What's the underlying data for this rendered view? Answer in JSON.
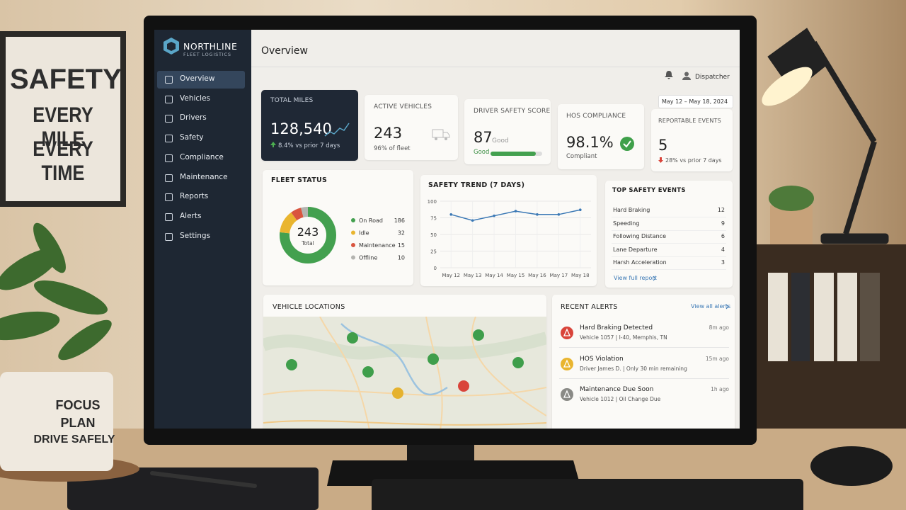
{
  "poster": {
    "lines": [
      "SAFETY",
      "EVERY MILE",
      "EVERY TIME"
    ]
  },
  "mug": {
    "lines": [
      "FOCUS",
      "PLAN",
      "DRIVE SAFELY"
    ]
  },
  "brand": {
    "name": "NORTHLINE",
    "sub": "FLEET LOGISTICS"
  },
  "nav": [
    "Overview",
    "Vehicles",
    "Drivers",
    "Safety",
    "Compliance",
    "Maintenance",
    "Reports",
    "Alerts",
    "Settings"
  ],
  "header": {
    "title": "Overview",
    "user": "Dispatcher",
    "date_range": "May 12 – May 18, 2024"
  },
  "kpis": [
    {
      "label": "TOTAL MILES",
      "value": "128,540",
      "note": "8.4% vs prior 7 days"
    },
    {
      "label": "ACTIVE VEHICLES",
      "value": "243",
      "note": "96% of fleet"
    },
    {
      "label": "DRIVER SAFETY SCORE",
      "value": 87,
      "status": "Good"
    },
    {
      "label": "HOS COMPLIANCE",
      "value": "98.1%",
      "note": "Compliant"
    },
    {
      "label": "REPORTABLE EVENTS",
      "value": "5",
      "note": "28% vs prior 7 days"
    }
  ],
  "fleet_status": {
    "title": "FLEET STATUS",
    "total": 243,
    "total_label": "Total",
    "items": [
      {
        "name": "On Road",
        "count": 186,
        "color": "#43a04f"
      },
      {
        "name": "Idle",
        "count": 32,
        "color": "#e9b52f"
      },
      {
        "name": "Maintenance",
        "count": 15,
        "color": "#d9553f"
      },
      {
        "name": "Offline",
        "count": 10,
        "color": "#b4b4b0"
      }
    ]
  },
  "chart_data": {
    "type": "line",
    "title": "SAFETY TREND (7 DAYS)",
    "categories": [
      "May 12",
      "May 13",
      "May 14",
      "May 15",
      "May 16",
      "May 17",
      "May 18"
    ],
    "values": [
      80,
      71,
      78,
      85,
      80,
      80,
      87
    ],
    "ylim": [
      0,
      100
    ],
    "yticks": [
      0,
      25,
      50,
      75,
      100
    ],
    "color": "#3a78b5",
    "grid": true
  },
  "top_events": {
    "title": "TOP SAFETY EVENTS",
    "rows": [
      [
        "Hard Braking",
        12
      ],
      [
        "Speeding",
        9
      ],
      [
        "Following Distance",
        6
      ],
      [
        "Lane Departure",
        4
      ],
      [
        "Harsh Acceleration",
        3
      ]
    ],
    "link": "View full report"
  },
  "map": {
    "title": "VEHICLE LOCATIONS"
  },
  "alerts": {
    "title": "RECENT ALERTS",
    "link": "View all alerts",
    "items": [
      {
        "title": "Hard Braking Detected",
        "detail": "Vehicle 1057 | I-40, Memphis, TN",
        "time": "8m ago",
        "color": "#d9443a"
      },
      {
        "title": "HOS Violation",
        "detail": "Driver James D. | Only 30 min remaining",
        "time": "15m ago",
        "color": "#e9b52f"
      },
      {
        "title": "Maintenance Due Soon",
        "detail": "Vehicle 1012 | Oil Change Due",
        "time": "1h ago",
        "color": "#8a8a86"
      }
    ]
  }
}
